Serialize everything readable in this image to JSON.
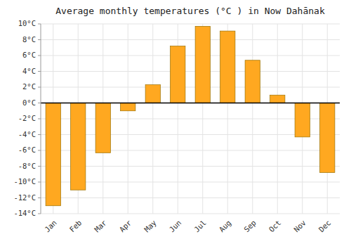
{
  "chart_data": {
    "type": "bar",
    "title": "Average monthly temperatures (°C ) in Now Dahānak",
    "categories": [
      "Jan",
      "Feb",
      "Mar",
      "Apr",
      "May",
      "Jun",
      "Jul",
      "Aug",
      "Sep",
      "Oct",
      "Nov",
      "Dec"
    ],
    "values": [
      -13.0,
      -11.0,
      -6.3,
      -1.0,
      2.3,
      7.2,
      9.7,
      9.1,
      5.4,
      1.0,
      -4.3,
      -8.8
    ],
    "color": "#FFA820",
    "ylim": [
      -14,
      10
    ],
    "yticks": [
      {
        "value": -14,
        "label": "-14°C"
      },
      {
        "value": -12,
        "label": "-12°C"
      },
      {
        "value": -10,
        "label": "-10°C"
      },
      {
        "value": -8,
        "label": "-8°C"
      },
      {
        "value": -6,
        "label": "-6°C"
      },
      {
        "value": -4,
        "label": "-4°C"
      },
      {
        "value": -2,
        "label": "-2°C"
      },
      {
        "value": 0,
        "label": "0°C"
      },
      {
        "value": 2,
        "label": "2°C"
      },
      {
        "value": 4,
        "label": "4°C"
      },
      {
        "value": 6,
        "label": "6°C"
      },
      {
        "value": 8,
        "label": "8°C"
      },
      {
        "value": 10,
        "label": "10°C"
      }
    ],
    "grid": true
  }
}
